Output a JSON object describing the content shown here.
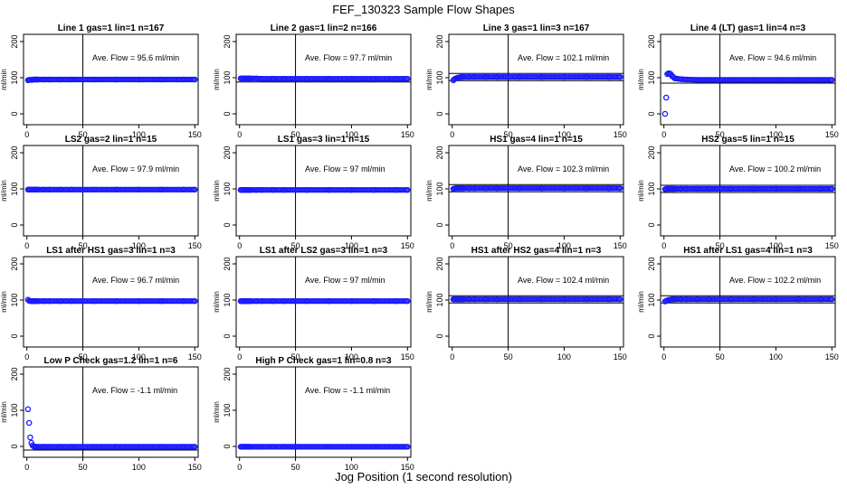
{
  "figure": {
    "title": "FEF_130323  Sample Flow Shapes",
    "xlabel": "Jog Position (1 second resolution)"
  },
  "style": {
    "point_color": "#1a1aff",
    "axis_color": "#000000"
  },
  "chart_data": [
    {
      "type": "scatter",
      "title": "Line 1 gas=1 lin=1 n=167",
      "ylabel": "ml/min",
      "annotation": "Ave. Flow =  95.6  ml/min",
      "xlim": [
        -3,
        153
      ],
      "ylim": [
        -30,
        220
      ],
      "xticks": [
        0,
        50,
        100,
        150
      ],
      "yticks": [
        0,
        100,
        200
      ],
      "vline": 50,
      "hlines": [],
      "x": [
        1,
        2,
        3,
        4,
        5,
        6,
        7,
        8,
        9,
        10,
        15,
        20,
        30,
        40,
        60,
        80,
        100,
        120,
        140,
        150
      ],
      "y": [
        93,
        94,
        94,
        94,
        94,
        95,
        95,
        95,
        95,
        95,
        95,
        95,
        95,
        95,
        95,
        95,
        95,
        95,
        95,
        95
      ]
    },
    {
      "type": "scatter",
      "title": "Line 2 gas=1 lin=2 n=166",
      "ylabel": "ml/min",
      "annotation": "Ave. Flow =  97.7  ml/min",
      "xlim": [
        -3,
        153
      ],
      "ylim": [
        -30,
        220
      ],
      "xticks": [
        0,
        50,
        100,
        150
      ],
      "yticks": [
        0,
        100,
        200
      ],
      "vline": 50,
      "hlines": [
        88
      ],
      "x": [
        1,
        2,
        3,
        4,
        5,
        6,
        7,
        8,
        9,
        10,
        15,
        20,
        30,
        40,
        60,
        80,
        100,
        120,
        140,
        150
      ],
      "y": [
        98,
        98,
        98,
        98,
        98,
        98,
        98,
        98,
        98,
        98,
        98,
        97,
        97,
        97,
        97,
        97,
        97,
        97,
        97,
        97
      ]
    },
    {
      "type": "scatter",
      "title": "Line 3 gas=1 lin=3 n=167",
      "ylabel": "ml/min",
      "annotation": "Ave. Flow =  102.1  ml/min",
      "xlim": [
        -3,
        153
      ],
      "ylim": [
        -30,
        220
      ],
      "xticks": [
        0,
        50,
        100,
        150
      ],
      "yticks": [
        0,
        100,
        200
      ],
      "vline": 50,
      "hlines": [
        92,
        112
      ],
      "x": [
        1,
        2,
        3,
        4,
        5,
        6,
        7,
        8,
        9,
        10,
        15,
        20,
        30,
        40,
        60,
        80,
        100,
        120,
        140,
        150
      ],
      "y": [
        93,
        96,
        98,
        99,
        100,
        101,
        101,
        102,
        102,
        102,
        102,
        102,
        102,
        102,
        102,
        102,
        102,
        102,
        102,
        102
      ]
    },
    {
      "type": "scatter",
      "title": "Line 4 (LT) gas=1 lin=4 n=3",
      "ylabel": "ml/min",
      "annotation": "Ave. Flow =  94.6  ml/min",
      "xlim": [
        -3,
        153
      ],
      "ylim": [
        -30,
        220
      ],
      "xticks": [
        0,
        50,
        100,
        150
      ],
      "yticks": [
        0,
        100,
        200
      ],
      "vline": 50,
      "hlines": [
        85
      ],
      "x": [
        1,
        2,
        3,
        4,
        5,
        6,
        7,
        8,
        9,
        10,
        15,
        20,
        30,
        40,
        60,
        80,
        100,
        120,
        140,
        150
      ],
      "y": [
        0,
        45,
        110,
        112,
        112,
        110,
        105,
        103,
        100,
        98,
        96,
        95,
        94,
        94,
        94,
        94,
        94,
        94,
        94,
        94
      ]
    },
    {
      "type": "scatter",
      "title": "LS2 gas=2 lin=1 n=15",
      "ylabel": "ml/min",
      "annotation": "Ave. Flow =  97.9  ml/min",
      "xlim": [
        -3,
        153
      ],
      "ylim": [
        -30,
        220
      ],
      "xticks": [
        0,
        50,
        100,
        150
      ],
      "yticks": [
        0,
        100,
        200
      ],
      "vline": 50,
      "hlines": [],
      "x": [
        1,
        2,
        3,
        4,
        5,
        6,
        7,
        8,
        9,
        10,
        15,
        20,
        30,
        40,
        60,
        80,
        100,
        120,
        140,
        150
      ],
      "y": [
        98,
        98,
        98,
        98,
        98,
        98,
        98,
        98,
        98,
        98,
        98,
        98,
        98,
        98,
        98,
        98,
        98,
        98,
        98,
        98
      ]
    },
    {
      "type": "scatter",
      "title": "LS1 gas=3 lin=1 n=15",
      "ylabel": "ml/min",
      "annotation": "Ave. Flow =  97  ml/min",
      "xlim": [
        -3,
        153
      ],
      "ylim": [
        -30,
        220
      ],
      "xticks": [
        0,
        50,
        100,
        150
      ],
      "yticks": [
        0,
        100,
        200
      ],
      "vline": 50,
      "hlines": [],
      "x": [
        1,
        2,
        3,
        4,
        5,
        6,
        7,
        8,
        9,
        10,
        15,
        20,
        30,
        40,
        60,
        80,
        100,
        120,
        140,
        150
      ],
      "y": [
        97,
        97,
        97,
        97,
        97,
        97,
        97,
        97,
        97,
        97,
        97,
        97,
        97,
        97,
        97,
        97,
        97,
        97,
        97,
        97
      ]
    },
    {
      "type": "scatter",
      "title": "HS1 gas=4 lin=1 n=15",
      "ylabel": "ml/min",
      "annotation": "Ave. Flow =  102.3  ml/min",
      "xlim": [
        -3,
        153
      ],
      "ylim": [
        -30,
        220
      ],
      "xticks": [
        0,
        50,
        100,
        150
      ],
      "yticks": [
        0,
        100,
        200
      ],
      "vline": 50,
      "hlines": [
        92,
        112
      ],
      "x": [
        1,
        2,
        3,
        4,
        5,
        6,
        7,
        8,
        9,
        10,
        15,
        20,
        30,
        40,
        60,
        80,
        100,
        120,
        140,
        150
      ],
      "y": [
        100,
        101,
        102,
        102,
        102,
        102,
        102,
        102,
        102,
        102,
        102,
        102,
        102,
        102,
        102,
        102,
        102,
        102,
        102,
        102
      ]
    },
    {
      "type": "scatter",
      "title": "HS2 gas=5 lin=1 n=15",
      "ylabel": "ml/min",
      "annotation": "Ave. Flow =  100.2  ml/min",
      "xlim": [
        -3,
        153
      ],
      "ylim": [
        -30,
        220
      ],
      "xticks": [
        0,
        50,
        100,
        150
      ],
      "yticks": [
        0,
        100,
        200
      ],
      "vline": 50,
      "hlines": [
        90,
        110
      ],
      "x": [
        1,
        2,
        3,
        4,
        5,
        6,
        7,
        8,
        9,
        10,
        15,
        20,
        30,
        40,
        60,
        80,
        100,
        120,
        140,
        150
      ],
      "y": [
        99,
        100,
        100,
        100,
        100,
        100,
        100,
        100,
        100,
        100,
        100,
        100,
        100,
        100,
        100,
        100,
        100,
        100,
        100,
        100
      ]
    },
    {
      "type": "scatter",
      "title": "LS1 after HS1 gas=3 lin=1 n=3",
      "ylabel": "ml/min",
      "annotation": "Ave. Flow =  96.7  ml/min",
      "xlim": [
        -3,
        153
      ],
      "ylim": [
        -30,
        220
      ],
      "xticks": [
        0,
        50,
        100,
        150
      ],
      "yticks": [
        0,
        100,
        200
      ],
      "vline": 50,
      "hlines": [],
      "x": [
        1,
        2,
        3,
        4,
        5,
        6,
        7,
        8,
        9,
        10,
        15,
        20,
        30,
        40,
        60,
        80,
        100,
        120,
        140,
        150
      ],
      "y": [
        101,
        98,
        97,
        97,
        97,
        97,
        97,
        97,
        97,
        97,
        97,
        97,
        97,
        97,
        97,
        97,
        97,
        97,
        97,
        97
      ]
    },
    {
      "type": "scatter",
      "title": "LS1 after LS2 gas=3 lin=1 n=3",
      "ylabel": "ml/min",
      "annotation": "Ave. Flow =  97  ml/min",
      "xlim": [
        -3,
        153
      ],
      "ylim": [
        -30,
        220
      ],
      "xticks": [
        0,
        50,
        100,
        150
      ],
      "yticks": [
        0,
        100,
        200
      ],
      "vline": 50,
      "hlines": [],
      "x": [
        1,
        2,
        3,
        4,
        5,
        6,
        7,
        8,
        9,
        10,
        15,
        20,
        30,
        40,
        60,
        80,
        100,
        120,
        140,
        150
      ],
      "y": [
        97,
        97,
        97,
        97,
        97,
        97,
        97,
        97,
        97,
        97,
        97,
        97,
        97,
        97,
        97,
        97,
        97,
        97,
        97,
        97
      ]
    },
    {
      "type": "scatter",
      "title": "HS1 after HS2 gas=4 lin=1 n=3",
      "ylabel": "ml/min",
      "annotation": "Ave. Flow =  102.4  ml/min",
      "xlim": [
        -3,
        153
      ],
      "ylim": [
        -30,
        220
      ],
      "xticks": [
        0,
        50,
        100,
        150
      ],
      "yticks": [
        0,
        100,
        200
      ],
      "vline": 50,
      "hlines": [
        92,
        112
      ],
      "x": [
        1,
        2,
        3,
        4,
        5,
        6,
        7,
        8,
        9,
        10,
        15,
        20,
        30,
        40,
        60,
        80,
        100,
        120,
        140,
        150
      ],
      "y": [
        102,
        102,
        102,
        102,
        102,
        102,
        102,
        102,
        102,
        102,
        102,
        102,
        102,
        102,
        102,
        102,
        102,
        102,
        102,
        102
      ]
    },
    {
      "type": "scatter",
      "title": "HS1 after LS1 gas=4 lin=1 n=3",
      "ylabel": "ml/min",
      "annotation": "Ave. Flow =  102.2  ml/min",
      "xlim": [
        -3,
        153
      ],
      "ylim": [
        -30,
        220
      ],
      "xticks": [
        0,
        50,
        100,
        150
      ],
      "yticks": [
        0,
        100,
        200
      ],
      "vline": 50,
      "hlines": [
        92,
        112
      ],
      "x": [
        1,
        2,
        3,
        4,
        5,
        6,
        7,
        8,
        9,
        10,
        15,
        20,
        30,
        40,
        60,
        80,
        100,
        120,
        140,
        150
      ],
      "y": [
        96,
        98,
        99,
        100,
        101,
        101,
        102,
        102,
        102,
        102,
        102,
        102,
        102,
        102,
        102,
        102,
        102,
        102,
        102,
        102
      ]
    },
    {
      "type": "scatter",
      "title": "Low P Check gas=1.2 lin=1 n=6",
      "ylabel": "ml/min",
      "annotation": "Ave. Flow =  -1.1  ml/min",
      "xlim": [
        -3,
        153
      ],
      "ylim": [
        -30,
        220
      ],
      "xticks": [
        0,
        50,
        100,
        150
      ],
      "yticks": [
        0,
        100,
        200
      ],
      "vline": 50,
      "hlines": [
        -10
      ],
      "x": [
        1,
        2,
        3,
        4,
        5,
        6,
        7,
        8,
        9,
        10,
        15,
        20,
        30,
        40,
        60,
        80,
        100,
        120,
        140,
        150
      ],
      "y": [
        103,
        65,
        25,
        10,
        3,
        0,
        -1,
        -1,
        -1,
        -1,
        -1,
        -1,
        -1,
        -1,
        -1,
        -1,
        -1,
        -1,
        -1,
        -1
      ]
    },
    {
      "type": "scatter",
      "title": "High P Check gas=1 lin=0.8 n=3",
      "ylabel": "ml/min",
      "annotation": "Ave. Flow =  -1.1  ml/min",
      "xlim": [
        -3,
        153
      ],
      "ylim": [
        -30,
        220
      ],
      "xticks": [
        0,
        50,
        100,
        150
      ],
      "yticks": [
        0,
        100,
        200
      ],
      "vline": 50,
      "hlines": [],
      "x": [
        1,
        2,
        3,
        4,
        5,
        6,
        7,
        8,
        9,
        10,
        15,
        20,
        30,
        40,
        60,
        80,
        100,
        120,
        140,
        150
      ],
      "y": [
        -1,
        -1,
        -1,
        -1,
        -1,
        -1,
        -1,
        -1,
        -1,
        -1,
        -1,
        -1,
        -1,
        -1,
        -1,
        -1,
        -1,
        -1,
        -1,
        -1
      ]
    }
  ]
}
